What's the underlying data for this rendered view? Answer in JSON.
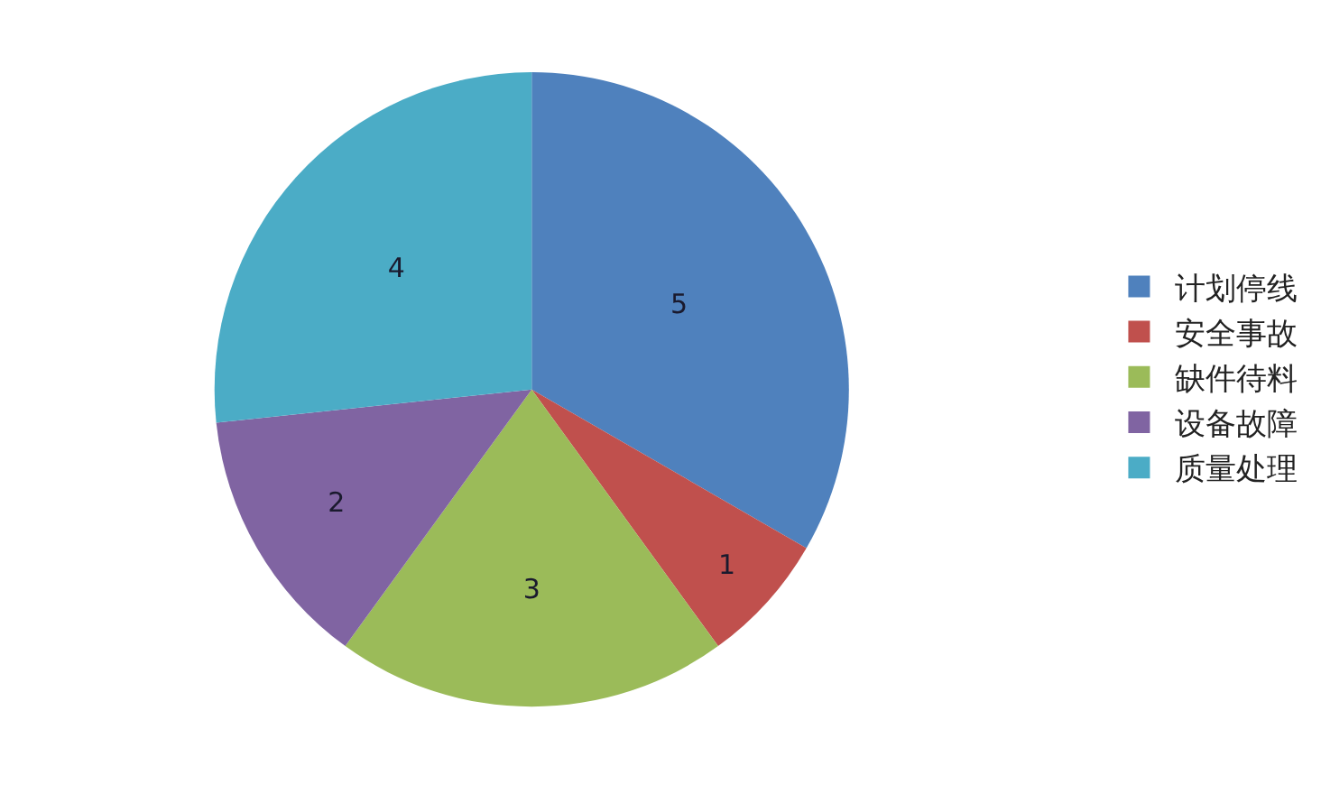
{
  "chart_data": {
    "type": "pie",
    "categories": [
      "计划停线",
      "安全事故",
      "缺件待料",
      "设备故障",
      "质量处理"
    ],
    "values": [
      5,
      1,
      3,
      2,
      4
    ],
    "colors": [
      "#4f81bd",
      "#c0504d",
      "#9bbb59",
      "#8064a2",
      "#4bacc6"
    ],
    "data_labels": true,
    "legend": "right"
  }
}
